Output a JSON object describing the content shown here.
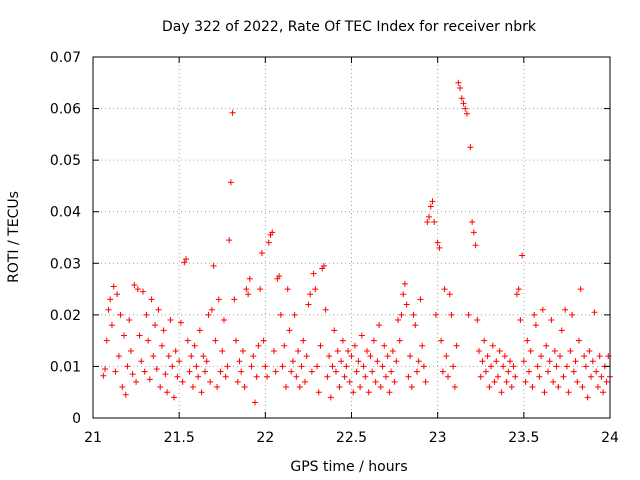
{
  "chart_data": {
    "type": "scatter",
    "title": "Day 322 of 2022, Rate Of TEC Index for receiver nbrk",
    "xlabel": "GPS time / hours",
    "ylabel": "ROTI / TECUs",
    "xlim": [
      21,
      24
    ],
    "ylim": [
      0,
      0.07
    ],
    "xticks": [
      21,
      21.5,
      22,
      22.5,
      23,
      23.5,
      24
    ],
    "xtick_labels": [
      "21",
      "21.5",
      "22",
      "22.5",
      "23",
      "23.5",
      "24"
    ],
    "yticks": [
      0,
      0.01,
      0.02,
      0.03,
      0.04,
      0.05,
      0.06,
      0.07
    ],
    "ytick_labels": [
      "0",
      "0.01",
      "0.02",
      "0.03",
      "0.04",
      "0.05",
      "0.06",
      "0.07"
    ],
    "grid": true,
    "marker": "plus",
    "color": "#ff0000",
    "series": [
      {
        "name": "ROTI",
        "points": [
          [
            21.06,
            0.0082
          ],
          [
            21.07,
            0.0095
          ],
          [
            21.08,
            0.015
          ],
          [
            21.09,
            0.021
          ],
          [
            21.1,
            0.023
          ],
          [
            21.11,
            0.018
          ],
          [
            21.12,
            0.0255
          ],
          [
            21.13,
            0.009
          ],
          [
            21.14,
            0.024
          ],
          [
            21.15,
            0.012
          ],
          [
            21.16,
            0.02
          ],
          [
            21.17,
            0.006
          ],
          [
            21.18,
            0.016
          ],
          [
            21.19,
            0.0045
          ],
          [
            21.2,
            0.01
          ],
          [
            21.21,
            0.019
          ],
          [
            21.22,
            0.013
          ],
          [
            21.23,
            0.0085
          ],
          [
            21.24,
            0.0258
          ],
          [
            21.25,
            0.007
          ],
          [
            21.26,
            0.025
          ],
          [
            21.27,
            0.016
          ],
          [
            21.28,
            0.011
          ],
          [
            21.29,
            0.0245
          ],
          [
            21.3,
            0.009
          ],
          [
            21.31,
            0.02
          ],
          [
            21.32,
            0.015
          ],
          [
            21.33,
            0.0075
          ],
          [
            21.34,
            0.023
          ],
          [
            21.35,
            0.012
          ],
          [
            21.36,
            0.018
          ],
          [
            21.37,
            0.0095
          ],
          [
            21.38,
            0.021
          ],
          [
            21.39,
            0.006
          ],
          [
            21.4,
            0.014
          ],
          [
            21.41,
            0.017
          ],
          [
            21.42,
            0.0085
          ],
          [
            21.43,
            0.005
          ],
          [
            21.44,
            0.012
          ],
          [
            21.45,
            0.019
          ],
          [
            21.46,
            0.01
          ],
          [
            21.47,
            0.004
          ],
          [
            21.48,
            0.013
          ],
          [
            21.49,
            0.008
          ],
          [
            21.5,
            0.011
          ],
          [
            21.51,
            0.0185
          ],
          [
            21.52,
            0.007
          ],
          [
            21.53,
            0.0302
          ],
          [
            21.54,
            0.0308
          ],
          [
            21.55,
            0.015
          ],
          [
            21.56,
            0.009
          ],
          [
            21.57,
            0.012
          ],
          [
            21.58,
            0.006
          ],
          [
            21.59,
            0.014
          ],
          [
            21.6,
            0.01
          ],
          [
            21.61,
            0.008
          ],
          [
            21.62,
            0.017
          ],
          [
            21.63,
            0.005
          ],
          [
            21.64,
            0.012
          ],
          [
            21.65,
            0.009
          ],
          [
            21.66,
            0.011
          ],
          [
            21.67,
            0.02
          ],
          [
            21.68,
            0.007
          ],
          [
            21.69,
            0.021
          ],
          [
            21.7,
            0.0295
          ],
          [
            21.71,
            0.015
          ],
          [
            21.72,
            0.006
          ],
          [
            21.73,
            0.023
          ],
          [
            21.74,
            0.009
          ],
          [
            21.75,
            0.013
          ],
          [
            21.76,
            0.019
          ],
          [
            21.77,
            0.008
          ],
          [
            21.78,
            0.01
          ],
          [
            21.79,
            0.0345
          ],
          [
            21.8,
            0.0457
          ],
          [
            21.81,
            0.0592
          ],
          [
            21.82,
            0.023
          ],
          [
            21.83,
            0.015
          ],
          [
            21.84,
            0.007
          ],
          [
            21.85,
            0.011
          ],
          [
            21.86,
            0.009
          ],
          [
            21.87,
            0.013
          ],
          [
            21.88,
            0.006
          ],
          [
            21.89,
            0.025
          ],
          [
            21.9,
            0.024
          ],
          [
            21.91,
            0.027
          ],
          [
            21.92,
            0.01
          ],
          [
            21.93,
            0.012
          ],
          [
            21.94,
            0.003
          ],
          [
            21.95,
            0.008
          ],
          [
            21.96,
            0.014
          ],
          [
            21.97,
            0.025
          ],
          [
            21.98,
            0.032
          ],
          [
            21.99,
            0.015
          ],
          [
            22.0,
            0.01
          ],
          [
            22.01,
            0.008
          ],
          [
            22.02,
            0.034
          ],
          [
            22.03,
            0.0355
          ],
          [
            22.04,
            0.036
          ],
          [
            22.05,
            0.013
          ],
          [
            22.06,
            0.009
          ],
          [
            22.07,
            0.027
          ],
          [
            22.08,
            0.0275
          ],
          [
            22.09,
            0.02
          ],
          [
            22.1,
            0.01
          ],
          [
            22.11,
            0.014
          ],
          [
            22.12,
            0.006
          ],
          [
            22.13,
            0.025
          ],
          [
            22.14,
            0.017
          ],
          [
            22.15,
            0.009
          ],
          [
            22.16,
            0.011
          ],
          [
            22.17,
            0.02
          ],
          [
            22.18,
            0.008
          ],
          [
            22.19,
            0.013
          ],
          [
            22.2,
            0.006
          ],
          [
            22.21,
            0.01
          ],
          [
            22.22,
            0.015
          ],
          [
            22.23,
            0.007
          ],
          [
            22.24,
            0.012
          ],
          [
            22.25,
            0.022
          ],
          [
            22.26,
            0.024
          ],
          [
            22.27,
            0.009
          ],
          [
            22.28,
            0.028
          ],
          [
            22.29,
            0.025
          ],
          [
            22.3,
            0.01
          ],
          [
            22.31,
            0.005
          ],
          [
            22.32,
            0.014
          ],
          [
            22.33,
            0.029
          ],
          [
            22.34,
            0.0295
          ],
          [
            22.35,
            0.021
          ],
          [
            22.36,
            0.008
          ],
          [
            22.37,
            0.012
          ],
          [
            22.38,
            0.004
          ],
          [
            22.39,
            0.01
          ],
          [
            22.4,
            0.017
          ],
          [
            22.41,
            0.009
          ],
          [
            22.42,
            0.013
          ],
          [
            22.43,
            0.006
          ],
          [
            22.44,
            0.011
          ],
          [
            22.45,
            0.015
          ],
          [
            22.46,
            0.008
          ],
          [
            22.47,
            0.01
          ],
          [
            22.48,
            0.013
          ],
          [
            22.49,
            0.007
          ],
          [
            22.5,
            0.012
          ],
          [
            22.51,
            0.005
          ],
          [
            22.52,
            0.014
          ],
          [
            22.53,
            0.009
          ],
          [
            22.54,
            0.011
          ],
          [
            22.55,
            0.006
          ],
          [
            22.56,
            0.016
          ],
          [
            22.57,
            0.01
          ],
          [
            22.58,
            0.008
          ],
          [
            22.59,
            0.013
          ],
          [
            22.6,
            0.005
          ],
          [
            22.61,
            0.012
          ],
          [
            22.62,
            0.009
          ],
          [
            22.63,
            0.015
          ],
          [
            22.64,
            0.007
          ],
          [
            22.65,
            0.011
          ],
          [
            22.66,
            0.018
          ],
          [
            22.67,
            0.006
          ],
          [
            22.68,
            0.01
          ],
          [
            22.69,
            0.014
          ],
          [
            22.7,
            0.008
          ],
          [
            22.71,
            0.012
          ],
          [
            22.72,
            0.005
          ],
          [
            22.73,
            0.009
          ],
          [
            22.74,
            0.013
          ],
          [
            22.75,
            0.007
          ],
          [
            22.76,
            0.011
          ],
          [
            22.77,
            0.019
          ],
          [
            22.78,
            0.015
          ],
          [
            22.79,
            0.02
          ],
          [
            22.8,
            0.024
          ],
          [
            22.81,
            0.026
          ],
          [
            22.82,
            0.022
          ],
          [
            22.83,
            0.008
          ],
          [
            22.84,
            0.012
          ],
          [
            22.85,
            0.006
          ],
          [
            22.86,
            0.02
          ],
          [
            22.87,
            0.018
          ],
          [
            22.88,
            0.009
          ],
          [
            22.89,
            0.011
          ],
          [
            22.9,
            0.023
          ],
          [
            22.91,
            0.014
          ],
          [
            22.92,
            0.01
          ],
          [
            22.93,
            0.007
          ],
          [
            22.94,
            0.038
          ],
          [
            22.95,
            0.039
          ],
          [
            22.96,
            0.041
          ],
          [
            22.97,
            0.042
          ],
          [
            22.98,
            0.038
          ],
          [
            22.99,
            0.02
          ],
          [
            23.0,
            0.034
          ],
          [
            23.01,
            0.033
          ],
          [
            23.02,
            0.015
          ],
          [
            23.03,
            0.009
          ],
          [
            23.04,
            0.025
          ],
          [
            23.05,
            0.012
          ],
          [
            23.06,
            0.008
          ],
          [
            23.07,
            0.024
          ],
          [
            23.08,
            0.02
          ],
          [
            23.09,
            0.01
          ],
          [
            23.1,
            0.006
          ],
          [
            23.11,
            0.014
          ],
          [
            23.12,
            0.065
          ],
          [
            23.13,
            0.064
          ],
          [
            23.14,
            0.062
          ],
          [
            23.15,
            0.061
          ],
          [
            23.16,
            0.06
          ],
          [
            23.17,
            0.059
          ],
          [
            23.18,
            0.02
          ],
          [
            23.19,
            0.0525
          ],
          [
            23.2,
            0.038
          ],
          [
            23.21,
            0.036
          ],
          [
            23.22,
            0.0335
          ],
          [
            23.23,
            0.019
          ],
          [
            23.24,
            0.013
          ],
          [
            23.25,
            0.008
          ],
          [
            23.26,
            0.011
          ],
          [
            23.27,
            0.015
          ],
          [
            23.28,
            0.009
          ],
          [
            23.29,
            0.012
          ],
          [
            23.3,
            0.006
          ],
          [
            23.31,
            0.01
          ],
          [
            23.32,
            0.014
          ],
          [
            23.33,
            0.007
          ],
          [
            23.34,
            0.011
          ],
          [
            23.35,
            0.008
          ],
          [
            23.36,
            0.013
          ],
          [
            23.37,
            0.005
          ],
          [
            23.38,
            0.01
          ],
          [
            23.39,
            0.012
          ],
          [
            23.4,
            0.007
          ],
          [
            23.41,
            0.009
          ],
          [
            23.42,
            0.011
          ],
          [
            23.43,
            0.006
          ],
          [
            23.44,
            0.01
          ],
          [
            23.45,
            0.008
          ],
          [
            23.46,
            0.024
          ],
          [
            23.47,
            0.025
          ],
          [
            23.48,
            0.019
          ],
          [
            23.49,
            0.0315
          ],
          [
            23.5,
            0.011
          ],
          [
            23.51,
            0.007
          ],
          [
            23.52,
            0.015
          ],
          [
            23.53,
            0.009
          ],
          [
            23.54,
            0.013
          ],
          [
            23.55,
            0.006
          ],
          [
            23.56,
            0.02
          ],
          [
            23.57,
            0.018
          ],
          [
            23.58,
            0.01
          ],
          [
            23.59,
            0.008
          ],
          [
            23.6,
            0.012
          ],
          [
            23.61,
            0.021
          ],
          [
            23.62,
            0.005
          ],
          [
            23.63,
            0.014
          ],
          [
            23.64,
            0.009
          ],
          [
            23.65,
            0.011
          ],
          [
            23.66,
            0.019
          ],
          [
            23.67,
            0.007
          ],
          [
            23.68,
            0.013
          ],
          [
            23.69,
            0.01
          ],
          [
            23.7,
            0.006
          ],
          [
            23.71,
            0.012
          ],
          [
            23.72,
            0.017
          ],
          [
            23.73,
            0.008
          ],
          [
            23.74,
            0.021
          ],
          [
            23.75,
            0.01
          ],
          [
            23.76,
            0.005
          ],
          [
            23.77,
            0.013
          ],
          [
            23.78,
            0.02
          ],
          [
            23.79,
            0.009
          ],
          [
            23.8,
            0.011
          ],
          [
            23.81,
            0.007
          ],
          [
            23.82,
            0.015
          ],
          [
            23.83,
            0.025
          ],
          [
            23.84,
            0.006
          ],
          [
            23.85,
            0.012
          ],
          [
            23.86,
            0.01
          ],
          [
            23.87,
            0.004
          ],
          [
            23.88,
            0.013
          ],
          [
            23.89,
            0.008
          ],
          [
            23.9,
            0.011
          ],
          [
            23.91,
            0.0205
          ],
          [
            23.92,
            0.009
          ],
          [
            23.93,
            0.006
          ],
          [
            23.94,
            0.012
          ],
          [
            23.95,
            0.008
          ],
          [
            23.96,
            0.005
          ],
          [
            23.97,
            0.01
          ],
          [
            23.98,
            0.007
          ],
          [
            23.99,
            0.012
          ],
          [
            24.0,
            0.008
          ]
        ]
      }
    ]
  }
}
